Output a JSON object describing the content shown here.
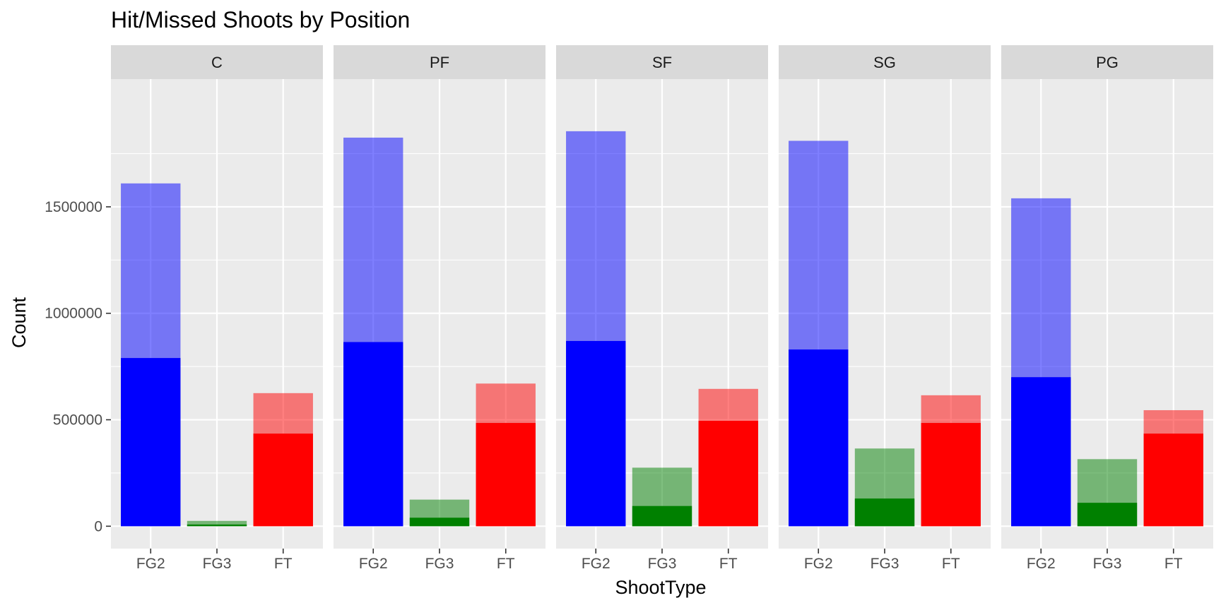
{
  "chart_data": {
    "type": "bar",
    "stacked": "overlay",
    "title": "Hit/Missed Shoots by Position",
    "xlabel": "ShootType",
    "ylabel": "Count",
    "ylim": [
      -105000,
      2100000
    ],
    "yticks": [
      0,
      500000,
      1000000,
      1500000
    ],
    "ytick_labels": [
      "0",
      "500000",
      "1000000",
      "1500000"
    ],
    "categories": [
      "FG2",
      "FG3",
      "FT"
    ],
    "category_colors": {
      "FG2": "#0000ff",
      "FG3": "#008000",
      "FT": "#ff0000"
    },
    "grid": true,
    "legend": "none",
    "facets": [
      {
        "label": "C",
        "attempted": [
          1610000,
          25000,
          625000
        ],
        "made": [
          790000,
          8000,
          435000
        ]
      },
      {
        "label": "PF",
        "attempted": [
          1825000,
          125000,
          670000
        ],
        "made": [
          865000,
          40000,
          485000
        ]
      },
      {
        "label": "SF",
        "attempted": [
          1855000,
          275000,
          645000
        ],
        "made": [
          870000,
          95000,
          495000
        ]
      },
      {
        "label": "SG",
        "attempted": [
          1810000,
          365000,
          615000
        ],
        "made": [
          830000,
          130000,
          485000
        ]
      },
      {
        "label": "PG",
        "attempted": [
          1540000,
          315000,
          545000
        ],
        "made": [
          700000,
          110000,
          435000
        ]
      }
    ]
  }
}
